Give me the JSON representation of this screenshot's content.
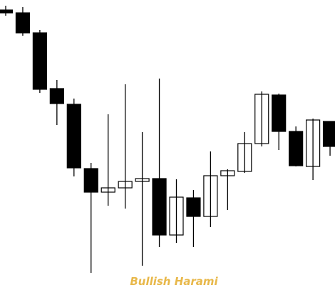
{
  "chart_data": {
    "type": "candlestick",
    "annotation": "Bullish Harami",
    "open": [
      392,
      388,
      360,
      282,
      260,
      170,
      137,
      143,
      152,
      156,
      77,
      129,
      103,
      160,
      166,
      205,
      273,
      222,
      173,
      236
    ],
    "high": [
      398,
      396,
      364,
      294,
      268,
      178,
      246,
      288,
      221,
      296,
      155,
      140,
      194,
      169,
      221,
      278,
      275,
      229,
      240,
      236
    ],
    "low": [
      384,
      356,
      276,
      231,
      159,
      24,
      118,
      114,
      34,
      60,
      66,
      60,
      88,
      112,
      164,
      201,
      196,
      173,
      154,
      188
    ],
    "close": [
      388,
      360,
      281,
      261,
      171,
      137,
      143,
      152,
      156,
      77,
      130,
      103,
      160,
      167,
      205,
      274,
      222,
      174,
      238,
      201
    ],
    "up_color": "#ffffff",
    "down_color": "#000000",
    "annotation_color": "#e8b84a",
    "ylim": [
      0,
      406
    ]
  }
}
